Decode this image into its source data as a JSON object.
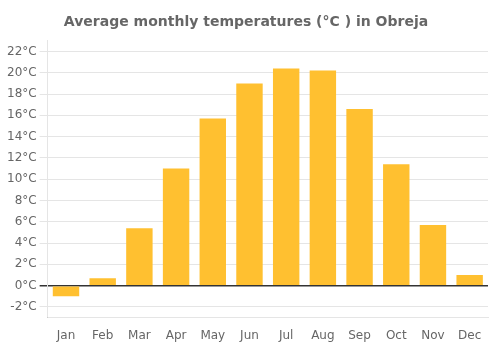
{
  "chart_data": {
    "type": "bar",
    "title": "Average monthly temperatures (°C ) in Obreja",
    "categories": [
      "Jan",
      "Feb",
      "Mar",
      "Apr",
      "May",
      "Jun",
      "Jul",
      "Aug",
      "Sep",
      "Oct",
      "Nov",
      "Dec"
    ],
    "values": [
      -1.0,
      0.7,
      5.4,
      11.0,
      15.7,
      19.0,
      20.4,
      20.2,
      16.6,
      11.4,
      5.7,
      1.0
    ],
    "color": "#FFC030",
    "ylim": [
      -3,
      23
    ],
    "yticks": [
      {
        "value": -2,
        "label": "-2°C"
      },
      {
        "value": 0,
        "label": "0°C"
      },
      {
        "value": 2,
        "label": "2°C"
      },
      {
        "value": 4,
        "label": "4°C"
      },
      {
        "value": 6,
        "label": "6°C"
      },
      {
        "value": 8,
        "label": "8°C"
      },
      {
        "value": 10,
        "label": "10°C"
      },
      {
        "value": 12,
        "label": "12°C"
      },
      {
        "value": 14,
        "label": "14°C"
      },
      {
        "value": 16,
        "label": "16°C"
      },
      {
        "value": 18,
        "label": "18°C"
      },
      {
        "value": 20,
        "label": "20°C"
      },
      {
        "value": 22,
        "label": "22°C"
      }
    ],
    "grid": true
  }
}
